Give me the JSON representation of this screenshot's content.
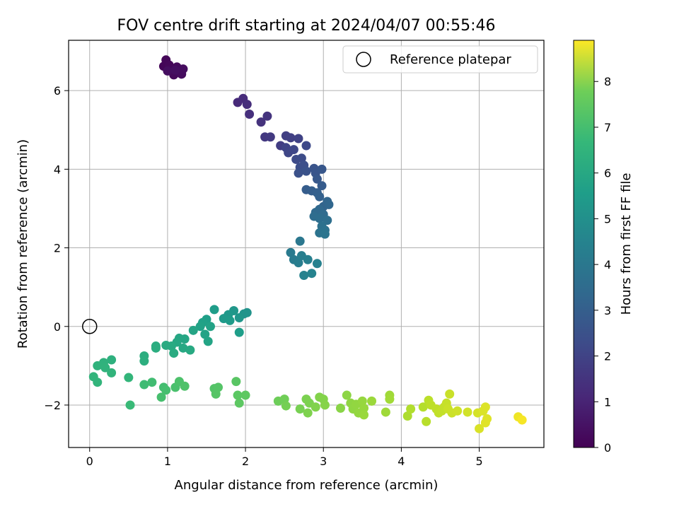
{
  "chart_data": {
    "type": "scatter",
    "title": "FOV centre drift starting at 2024/04/07 00:55:46",
    "xlabel": "Angular distance from reference (arcmin)",
    "ylabel": "Rotation from reference (arcmin)",
    "xlim": [
      -0.27,
      5.83
    ],
    "ylim": [
      -3.08,
      7.28
    ],
    "xticks": [
      0,
      1,
      2,
      3,
      4,
      5
    ],
    "yticks": [
      -2,
      0,
      2,
      4,
      6
    ],
    "grid": true,
    "legend": {
      "placement": "top-right",
      "entries": [
        "Reference platepar"
      ]
    },
    "reference_point": {
      "x": 0,
      "y": 0,
      "label": "Reference platepar"
    },
    "colorbar": {
      "label": "Hours from first FF file",
      "colormap": "viridis",
      "range": [
        0,
        8.9
      ],
      "ticks": [
        0,
        1,
        2,
        3,
        4,
        5,
        6,
        7,
        8
      ]
    },
    "points": [
      {
        "x": 0.95,
        "y": 6.62,
        "c": 0.1
      },
      {
        "x": 0.98,
        "y": 6.78,
        "c": 0.12
      },
      {
        "x": 1.02,
        "y": 6.65,
        "c": 0.15
      },
      {
        "x": 1.05,
        "y": 6.55,
        "c": 0.18
      },
      {
        "x": 1.08,
        "y": 6.4,
        "c": 0.2
      },
      {
        "x": 1.12,
        "y": 6.6,
        "c": 0.22
      },
      {
        "x": 1.15,
        "y": 6.48,
        "c": 0.25
      },
      {
        "x": 1.18,
        "y": 6.42,
        "c": 0.27
      },
      {
        "x": 1.2,
        "y": 6.55,
        "c": 0.3
      },
      {
        "x": 1.0,
        "y": 6.5,
        "c": 0.32
      },
      {
        "x": 1.1,
        "y": 6.52,
        "c": 0.35
      },
      {
        "x": 1.9,
        "y": 5.7,
        "c": 1.05
      },
      {
        "x": 1.97,
        "y": 5.8,
        "c": 1.1
      },
      {
        "x": 2.02,
        "y": 5.65,
        "c": 1.15
      },
      {
        "x": 2.05,
        "y": 5.4,
        "c": 1.2
      },
      {
        "x": 2.2,
        "y": 5.2,
        "c": 1.3
      },
      {
        "x": 2.28,
        "y": 5.35,
        "c": 1.35
      },
      {
        "x": 2.25,
        "y": 4.82,
        "c": 1.45
      },
      {
        "x": 2.32,
        "y": 4.82,
        "c": 1.5
      },
      {
        "x": 2.45,
        "y": 4.6,
        "c": 1.6
      },
      {
        "x": 2.52,
        "y": 4.85,
        "c": 1.65
      },
      {
        "x": 2.58,
        "y": 4.8,
        "c": 1.7
      },
      {
        "x": 2.68,
        "y": 4.78,
        "c": 1.75
      },
      {
        "x": 2.52,
        "y": 4.55,
        "c": 1.8
      },
      {
        "x": 2.55,
        "y": 4.42,
        "c": 1.85
      },
      {
        "x": 2.62,
        "y": 4.5,
        "c": 1.9
      },
      {
        "x": 2.78,
        "y": 4.6,
        "c": 1.95
      },
      {
        "x": 2.65,
        "y": 4.25,
        "c": 2.0
      },
      {
        "x": 2.72,
        "y": 4.28,
        "c": 2.05
      },
      {
        "x": 2.7,
        "y": 4.05,
        "c": 2.1
      },
      {
        "x": 2.75,
        "y": 4.1,
        "c": 2.15
      },
      {
        "x": 2.68,
        "y": 3.9,
        "c": 2.2
      },
      {
        "x": 2.78,
        "y": 3.95,
        "c": 2.25
      },
      {
        "x": 2.88,
        "y": 4.02,
        "c": 2.3
      },
      {
        "x": 2.9,
        "y": 3.9,
        "c": 2.35
      },
      {
        "x": 2.98,
        "y": 4.0,
        "c": 2.4
      },
      {
        "x": 2.92,
        "y": 3.75,
        "c": 2.45
      },
      {
        "x": 2.98,
        "y": 3.58,
        "c": 2.55
      },
      {
        "x": 2.78,
        "y": 3.48,
        "c": 2.6
      },
      {
        "x": 2.85,
        "y": 3.45,
        "c": 2.65
      },
      {
        "x": 2.92,
        "y": 3.4,
        "c": 2.7
      },
      {
        "x": 2.95,
        "y": 3.3,
        "c": 2.75
      },
      {
        "x": 3.0,
        "y": 3.05,
        "c": 2.85
      },
      {
        "x": 3.05,
        "y": 3.18,
        "c": 2.9
      },
      {
        "x": 3.07,
        "y": 3.1,
        "c": 2.95
      },
      {
        "x": 2.95,
        "y": 2.98,
        "c": 3.0
      },
      {
        "x": 2.9,
        "y": 2.9,
        "c": 3.05
      },
      {
        "x": 3.0,
        "y": 2.85,
        "c": 3.1
      },
      {
        "x": 2.88,
        "y": 2.8,
        "c": 3.15
      },
      {
        "x": 2.95,
        "y": 2.75,
        "c": 3.2
      },
      {
        "x": 3.05,
        "y": 2.7,
        "c": 3.25
      },
      {
        "x": 2.98,
        "y": 2.55,
        "c": 3.3
      },
      {
        "x": 3.02,
        "y": 2.45,
        "c": 3.35
      },
      {
        "x": 2.95,
        "y": 2.38,
        "c": 3.4
      },
      {
        "x": 3.02,
        "y": 2.35,
        "c": 3.45
      },
      {
        "x": 2.7,
        "y": 2.17,
        "c": 3.55
      },
      {
        "x": 2.58,
        "y": 1.88,
        "c": 3.65
      },
      {
        "x": 2.62,
        "y": 1.7,
        "c": 3.7
      },
      {
        "x": 2.68,
        "y": 1.62,
        "c": 3.75
      },
      {
        "x": 2.72,
        "y": 1.8,
        "c": 3.8
      },
      {
        "x": 2.8,
        "y": 1.7,
        "c": 3.85
      },
      {
        "x": 2.92,
        "y": 1.6,
        "c": 3.9
      },
      {
        "x": 2.75,
        "y": 1.3,
        "c": 3.95
      },
      {
        "x": 2.85,
        "y": 1.35,
        "c": 4.0
      },
      {
        "x": 2.02,
        "y": 0.35,
        "c": 4.55
      },
      {
        "x": 1.98,
        "y": 0.32,
        "c": 4.6
      },
      {
        "x": 1.92,
        "y": 0.22,
        "c": 4.65
      },
      {
        "x": 1.85,
        "y": 0.4,
        "c": 4.7
      },
      {
        "x": 1.78,
        "y": 0.3,
        "c": 4.75
      },
      {
        "x": 1.72,
        "y": 0.2,
        "c": 4.8
      },
      {
        "x": 1.8,
        "y": 0.15,
        "c": 4.85
      },
      {
        "x": 1.6,
        "y": 0.43,
        "c": 4.9
      },
      {
        "x": 1.92,
        "y": -0.15,
        "c": 4.95
      },
      {
        "x": 1.5,
        "y": 0.18,
        "c": 5.0
      },
      {
        "x": 1.45,
        "y": 0.1,
        "c": 5.05
      },
      {
        "x": 1.42,
        "y": 0.0,
        "c": 5.1
      },
      {
        "x": 1.55,
        "y": 0.0,
        "c": 5.12
      },
      {
        "x": 1.48,
        "y": -0.2,
        "c": 5.15
      },
      {
        "x": 1.52,
        "y": -0.38,
        "c": 5.18
      },
      {
        "x": 1.33,
        "y": -0.1,
        "c": 5.2
      },
      {
        "x": 1.22,
        "y": -0.32,
        "c": 5.25
      },
      {
        "x": 1.15,
        "y": -0.3,
        "c": 5.28
      },
      {
        "x": 1.12,
        "y": -0.4,
        "c": 5.3
      },
      {
        "x": 1.2,
        "y": -0.55,
        "c": 5.33
      },
      {
        "x": 1.29,
        "y": -0.6,
        "c": 5.36
      },
      {
        "x": 1.05,
        "y": -0.5,
        "c": 5.4
      },
      {
        "x": 0.98,
        "y": -0.48,
        "c": 5.43
      },
      {
        "x": 1.08,
        "y": -0.68,
        "c": 5.46
      },
      {
        "x": 0.85,
        "y": -0.5,
        "c": 5.5
      },
      {
        "x": 0.85,
        "y": -0.55,
        "c": 5.52
      },
      {
        "x": 0.7,
        "y": -0.75,
        "c": 5.55
      },
      {
        "x": 0.7,
        "y": -0.88,
        "c": 5.58
      },
      {
        "x": 0.28,
        "y": -0.85,
        "c": 5.65
      },
      {
        "x": 0.18,
        "y": -0.92,
        "c": 5.7
      },
      {
        "x": 0.1,
        "y": -1.0,
        "c": 5.72
      },
      {
        "x": 0.2,
        "y": -1.05,
        "c": 5.75
      },
      {
        "x": 0.28,
        "y": -1.18,
        "c": 5.78
      },
      {
        "x": 0.05,
        "y": -1.28,
        "c": 5.8
      },
      {
        "x": 0.1,
        "y": -1.42,
        "c": 5.82
      },
      {
        "x": 0.5,
        "y": -1.3,
        "c": 5.85
      },
      {
        "x": 0.7,
        "y": -1.48,
        "c": 6.1
      },
      {
        "x": 0.8,
        "y": -1.42,
        "c": 6.15
      },
      {
        "x": 0.95,
        "y": -1.55,
        "c": 6.2
      },
      {
        "x": 0.98,
        "y": -1.62,
        "c": 6.22
      },
      {
        "x": 0.92,
        "y": -1.8,
        "c": 6.25
      },
      {
        "x": 0.52,
        "y": -2.0,
        "c": 6.0
      },
      {
        "x": 1.1,
        "y": -1.55,
        "c": 6.3
      },
      {
        "x": 1.15,
        "y": -1.4,
        "c": 6.35
      },
      {
        "x": 1.22,
        "y": -1.52,
        "c": 6.38
      },
      {
        "x": 1.6,
        "y": -1.58,
        "c": 6.45
      },
      {
        "x": 1.65,
        "y": -1.55,
        "c": 6.48
      },
      {
        "x": 1.62,
        "y": -1.72,
        "c": 6.5
      },
      {
        "x": 1.88,
        "y": -1.4,
        "c": 6.55
      },
      {
        "x": 1.9,
        "y": -1.75,
        "c": 6.6
      },
      {
        "x": 1.92,
        "y": -1.95,
        "c": 6.62
      },
      {
        "x": 2.0,
        "y": -1.75,
        "c": 6.65
      },
      {
        "x": 2.42,
        "y": -1.9,
        "c": 6.9
      },
      {
        "x": 2.5,
        "y": -1.85,
        "c": 6.95
      },
      {
        "x": 2.52,
        "y": -2.02,
        "c": 7.0
      },
      {
        "x": 2.7,
        "y": -2.1,
        "c": 7.05
      },
      {
        "x": 2.78,
        "y": -1.85,
        "c": 7.1
      },
      {
        "x": 2.82,
        "y": -1.95,
        "c": 7.12
      },
      {
        "x": 2.8,
        "y": -2.2,
        "c": 7.15
      },
      {
        "x": 2.9,
        "y": -2.05,
        "c": 7.18
      },
      {
        "x": 2.95,
        "y": -1.8,
        "c": 7.2
      },
      {
        "x": 3.0,
        "y": -1.85,
        "c": 7.22
      },
      {
        "x": 3.02,
        "y": -2.0,
        "c": 7.25
      },
      {
        "x": 3.22,
        "y": -2.08,
        "c": 7.3
      },
      {
        "x": 3.3,
        "y": -1.75,
        "c": 7.35
      },
      {
        "x": 3.35,
        "y": -1.95,
        "c": 7.38
      },
      {
        "x": 3.38,
        "y": -2.1,
        "c": 7.4
      },
      {
        "x": 3.42,
        "y": -1.98,
        "c": 7.42
      },
      {
        "x": 3.45,
        "y": -2.2,
        "c": 7.45
      },
      {
        "x": 3.5,
        "y": -1.9,
        "c": 7.48
      },
      {
        "x": 3.52,
        "y": -2.08,
        "c": 7.5
      },
      {
        "x": 3.52,
        "y": -2.25,
        "c": 7.52
      },
      {
        "x": 3.62,
        "y": -1.9,
        "c": 7.55
      },
      {
        "x": 3.8,
        "y": -2.18,
        "c": 7.6
      },
      {
        "x": 3.85,
        "y": -1.75,
        "c": 7.62
      },
      {
        "x": 3.85,
        "y": -1.85,
        "c": 7.65
      },
      {
        "x": 4.08,
        "y": -2.28,
        "c": 7.8
      },
      {
        "x": 4.12,
        "y": -2.1,
        "c": 7.85
      },
      {
        "x": 4.28,
        "y": -2.05,
        "c": 7.9
      },
      {
        "x": 4.32,
        "y": -2.42,
        "c": 7.95
      },
      {
        "x": 4.35,
        "y": -1.88,
        "c": 8.0
      },
      {
        "x": 4.38,
        "y": -2.0,
        "c": 8.02
      },
      {
        "x": 4.45,
        "y": -2.1,
        "c": 8.05
      },
      {
        "x": 4.48,
        "y": -2.2,
        "c": 8.08
      },
      {
        "x": 4.52,
        "y": -2.15,
        "c": 8.1
      },
      {
        "x": 4.55,
        "y": -2.05,
        "c": 8.12
      },
      {
        "x": 4.58,
        "y": -1.95,
        "c": 8.15
      },
      {
        "x": 4.62,
        "y": -1.72,
        "c": 8.18
      },
      {
        "x": 4.6,
        "y": -2.1,
        "c": 8.2
      },
      {
        "x": 4.65,
        "y": -2.2,
        "c": 8.22
      },
      {
        "x": 4.72,
        "y": -2.15,
        "c": 8.25
      },
      {
        "x": 4.85,
        "y": -2.18,
        "c": 8.3
      },
      {
        "x": 4.98,
        "y": -2.2,
        "c": 8.35
      },
      {
        "x": 5.0,
        "y": -2.6,
        "c": 8.4
      },
      {
        "x": 5.05,
        "y": -2.15,
        "c": 8.42
      },
      {
        "x": 5.08,
        "y": -2.05,
        "c": 8.45
      },
      {
        "x": 5.1,
        "y": -2.35,
        "c": 8.48
      },
      {
        "x": 5.08,
        "y": -2.45,
        "c": 8.5
      },
      {
        "x": 5.5,
        "y": -2.3,
        "c": 8.7
      },
      {
        "x": 5.55,
        "y": -2.38,
        "c": 8.8
      }
    ]
  }
}
